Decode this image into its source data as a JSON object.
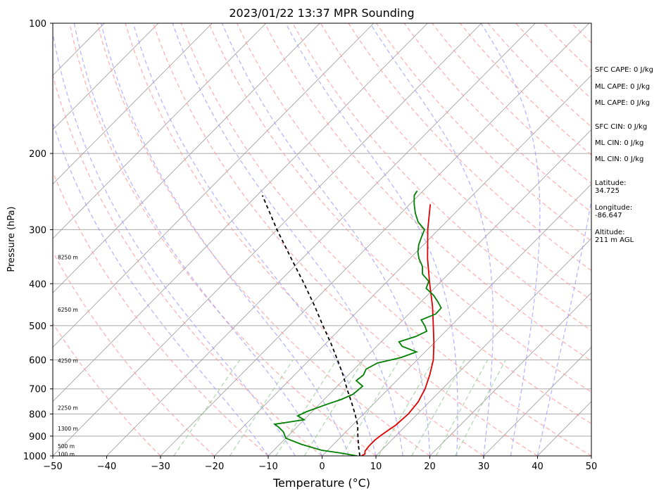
{
  "chart_data": {
    "type": "line",
    "title": "2023/01/22 13:37 MPR Sounding",
    "xlabel": "Temperature (°C)",
    "ylabel": "Pressure (hPa)",
    "xlim": [
      -50,
      50
    ],
    "ylim": [
      1000,
      100
    ],
    "y_scale": "log",
    "x_ticks": [
      "−50",
      "−40",
      "−30",
      "−20",
      "−10",
      "0",
      "10",
      "20",
      "30",
      "40",
      "50"
    ],
    "y_ticks": [
      "100",
      "200",
      "300",
      "400",
      "500",
      "600",
      "700",
      "800",
      "900",
      "1000"
    ],
    "height_labels": [
      {
        "label": "100 m",
        "p": 992
      },
      {
        "label": "500 m",
        "p": 950
      },
      {
        "label": "1300 m",
        "p": 866
      },
      {
        "label": "2250 m",
        "p": 775
      },
      {
        "label": "4250 m",
        "p": 603
      },
      {
        "label": "6250 m",
        "p": 460
      },
      {
        "label": "8250 m",
        "p": 348
      }
    ],
    "series": [
      {
        "color": "#e00000",
        "kind": "temperature",
        "points": [
          [
            1000,
            7.3
          ],
          [
            990,
            7.6
          ],
          [
            975,
            7.1
          ],
          [
            950,
            6.9
          ],
          [
            920,
            6.9
          ],
          [
            900,
            7.1
          ],
          [
            870,
            7.6
          ],
          [
            850,
            8.0
          ],
          [
            800,
            8.3
          ],
          [
            750,
            7.9
          ],
          [
            700,
            6.8
          ],
          [
            650,
            5.1
          ],
          [
            600,
            3.0
          ],
          [
            550,
            0.1
          ],
          [
            500,
            -3.3
          ],
          [
            450,
            -7.1
          ],
          [
            400,
            -11.7
          ],
          [
            350,
            -16.7
          ],
          [
            300,
            -22.0
          ],
          [
            262,
            -26.2
          ]
        ]
      },
      {
        "color": "#008000",
        "kind": "dewpoint",
        "points": [
          [
            1000,
            6.5
          ],
          [
            985,
            3.0
          ],
          [
            970,
            -1.2
          ],
          [
            940,
            -6.0
          ],
          [
            910,
            -10.0
          ],
          [
            880,
            -11.6
          ],
          [
            860,
            -13.2
          ],
          [
            845,
            -14.6
          ],
          [
            825,
            -10.0
          ],
          [
            808,
            -11.9
          ],
          [
            790,
            -11.0
          ],
          [
            760,
            -8.6
          ],
          [
            740,
            -6.8
          ],
          [
            720,
            -5.6
          ],
          [
            690,
            -5.3
          ],
          [
            670,
            -7.5
          ],
          [
            650,
            -7.2
          ],
          [
            630,
            -7.8
          ],
          [
            610,
            -6.8
          ],
          [
            593,
            -3.5
          ],
          [
            575,
            -1.6
          ],
          [
            558,
            -5.3
          ],
          [
            545,
            -6.7
          ],
          [
            530,
            -4.6
          ],
          [
            515,
            -3.5
          ],
          [
            500,
            -4.9
          ],
          [
            485,
            -6.6
          ],
          [
            470,
            -5.0
          ],
          [
            455,
            -5.1
          ],
          [
            440,
            -6.9
          ],
          [
            425,
            -8.9
          ],
          [
            410,
            -11.5
          ],
          [
            395,
            -12.3
          ],
          [
            380,
            -14.8
          ],
          [
            365,
            -16.2
          ],
          [
            350,
            -18.3
          ],
          [
            338,
            -19.7
          ],
          [
            325,
            -20.9
          ],
          [
            312,
            -21.8
          ],
          [
            300,
            -22.6
          ],
          [
            288,
            -25.2
          ],
          [
            275,
            -27.3
          ],
          [
            262,
            -29.2
          ],
          [
            250,
            -30.8
          ],
          [
            244,
            -31.1
          ]
        ]
      },
      {
        "color": "#000000",
        "kind": "parcel",
        "dashed": true,
        "points": [
          [
            1000,
            7.0
          ],
          [
            950,
            5.0
          ],
          [
            900,
            3.0
          ],
          [
            850,
            1.0
          ],
          [
            800,
            -1.6
          ],
          [
            750,
            -4.5
          ],
          [
            700,
            -7.7
          ],
          [
            650,
            -11.0
          ],
          [
            600,
            -14.8
          ],
          [
            550,
            -19.0
          ],
          [
            500,
            -23.8
          ],
          [
            450,
            -29.0
          ],
          [
            400,
            -35.0
          ],
          [
            350,
            -42.0
          ],
          [
            300,
            -50.0
          ],
          [
            250,
            -59.0
          ]
        ]
      }
    ]
  },
  "stats": {
    "sfc_cape": "SFC CAPE: 0 J/kg",
    "ml_cape_1": "ML CAPE: 0 J/kg",
    "ml_cape_2": "ML CAPE: 0 J/kg",
    "sfc_cin": "SFC CIN: 0 J/kg",
    "ml_cin_1": "ML CIN: 0 J/kg",
    "ml_cin_2": "ML CIN: 0 J/kg",
    "latitude": "Latitude:\n34.725",
    "longitude": "Longitude:\n-86.647",
    "altitude": "Altitude:\n211 m AGL"
  },
  "colors": {
    "dry_adiabats": "#ff9999",
    "moist_adiabats": "#9999ff",
    "mixing_ratio": "#99cc99",
    "isotherms": "#999999",
    "isobars": "#aaaaaa"
  }
}
